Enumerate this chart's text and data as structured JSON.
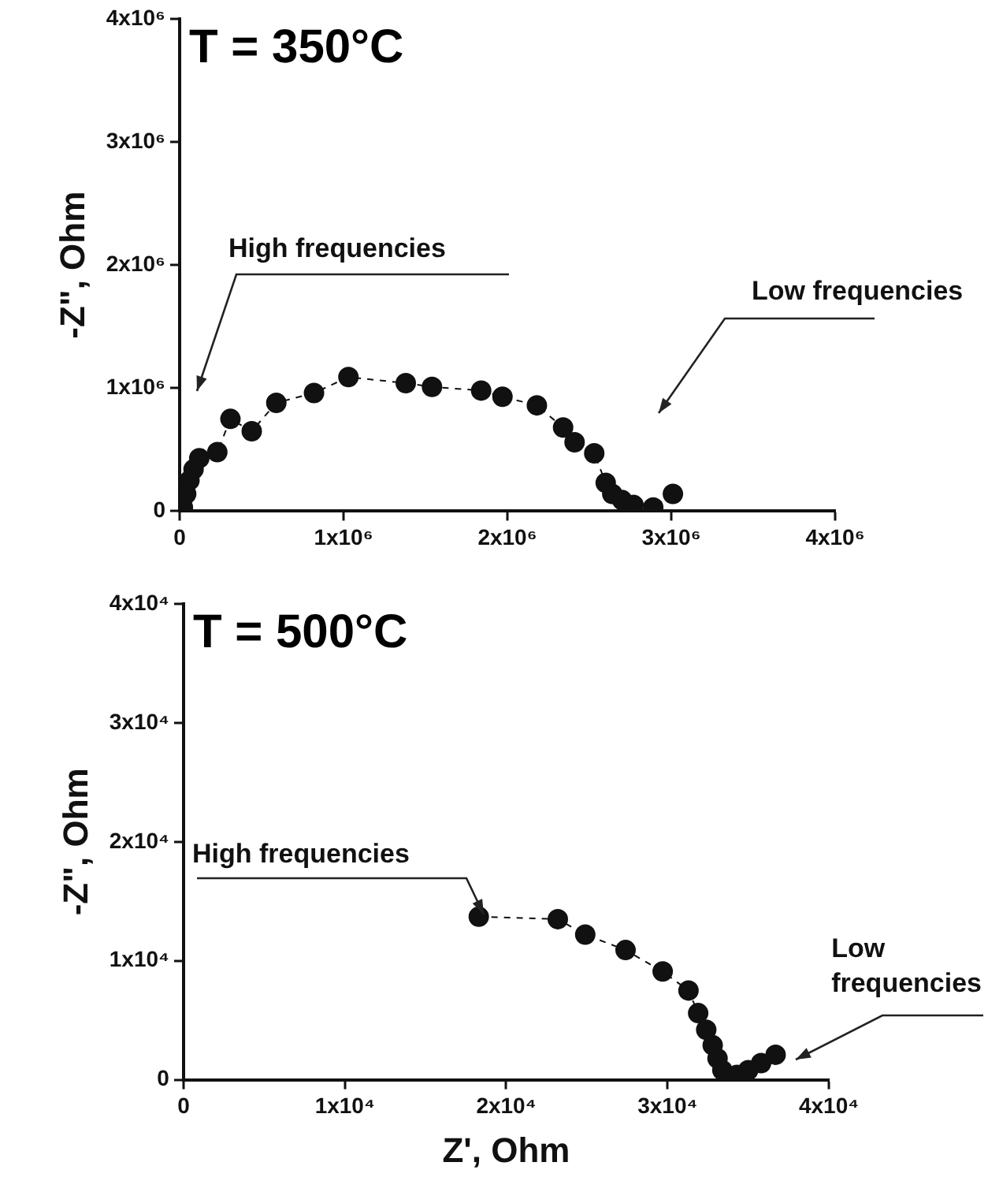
{
  "chart_data": [
    {
      "type": "line",
      "title": "T = 350°C",
      "ylabel": "-Z\", Ohm",
      "marker": "circle",
      "line_style": "dashed",
      "grid": false,
      "legend": false,
      "xlim": [
        0,
        4000000
      ],
      "ylim": [
        0,
        4000000
      ],
      "xticks": [
        0,
        {
          "value": 1000000,
          "label": "1x10⁶"
        },
        {
          "value": 2000000,
          "label": "2x10⁶"
        },
        {
          "value": 3000000,
          "label": "3x10⁶"
        },
        {
          "value": 4000000,
          "label": "4x10⁶"
        }
      ],
      "yticks": [
        0,
        {
          "value": 1000000,
          "label": "1x10⁶"
        },
        {
          "value": 2000000,
          "label": "2x10⁶"
        },
        {
          "value": 3000000,
          "label": "3x10⁶"
        },
        {
          "value": 4000000,
          "label": "4x10⁶"
        }
      ],
      "annotations": [
        "High frequencies",
        "Low frequencies"
      ],
      "series": [
        {
          "color": "#111111",
          "x": [
            20000,
            40000,
            60000,
            85000,
            120000,
            230000,
            310000,
            440000,
            590000,
            820000,
            1030000,
            1380000,
            1540000,
            1840000,
            1970000,
            2180000,
            2340000,
            2410000,
            2530000,
            2600000,
            2640000,
            2700000,
            2770000,
            2890000,
            3010000
          ],
          "values": [
            30000,
            140000,
            250000,
            340000,
            430000,
            480000,
            750000,
            650000,
            880000,
            960000,
            1090000,
            1040000,
            1010000,
            980000,
            930000,
            860000,
            680000,
            560000,
            470000,
            230000,
            140000,
            90000,
            50000,
            30000,
            140000
          ]
        }
      ]
    },
    {
      "type": "line",
      "title": "T = 500°C",
      "ylabel": "-Z\", Ohm",
      "xlabel": "Z', Ohm",
      "marker": "circle",
      "line_style": "dashed",
      "grid": false,
      "legend": false,
      "xlim": [
        0,
        40000
      ],
      "ylim": [
        0,
        40000
      ],
      "xticks": [
        0,
        {
          "value": 10000,
          "label": "1x10⁴"
        },
        {
          "value": 20000,
          "label": "2x10⁴"
        },
        {
          "value": 30000,
          "label": "3x10⁴"
        },
        {
          "value": 40000,
          "label": "4x10⁴"
        }
      ],
      "yticks": [
        0,
        {
          "value": 10000,
          "label": "1x10⁴"
        },
        {
          "value": 20000,
          "label": "2x10⁴"
        },
        {
          "value": 30000,
          "label": "3x10⁴"
        },
        {
          "value": 40000,
          "label": "4x10⁴"
        }
      ],
      "annotations": [
        "High frequencies",
        "Low\nfrequencies"
      ],
      "series": [
        {
          "color": "#111111",
          "x": [
            18300,
            23200,
            24900,
            27400,
            29700,
            31300,
            31900,
            32400,
            32800,
            33100,
            33400,
            34300,
            35000,
            35800,
            36700
          ],
          "values": [
            13700,
            13500,
            12200,
            10900,
            9100,
            7500,
            5600,
            4200,
            2900,
            1800,
            800,
            400,
            800,
            1400,
            2100
          ]
        }
      ]
    }
  ]
}
